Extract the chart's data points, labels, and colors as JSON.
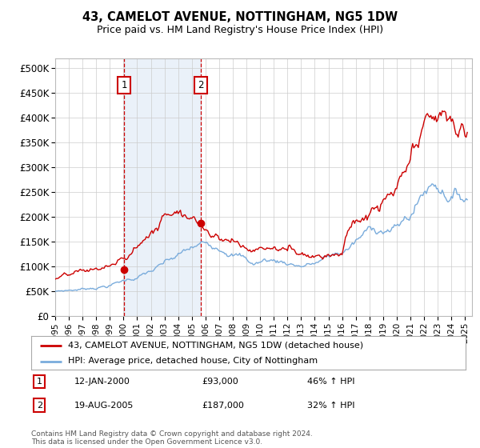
{
  "title": "43, CAMELOT AVENUE, NOTTINGHAM, NG5 1DW",
  "subtitle": "Price paid vs. HM Land Registry's House Price Index (HPI)",
  "legend_line1": "43, CAMELOT AVENUE, NOTTINGHAM, NG5 1DW (detached house)",
  "legend_line2": "HPI: Average price, detached house, City of Nottingham",
  "sale1_label": "1",
  "sale1_date": "12-JAN-2000",
  "sale1_price": "£93,000",
  "sale1_hpi": "46% ↑ HPI",
  "sale2_label": "2",
  "sale2_date": "19-AUG-2005",
  "sale2_price": "£187,000",
  "sale2_hpi": "32% ↑ HPI",
  "footnote": "Contains HM Land Registry data © Crown copyright and database right 2024.\nThis data is licensed under the Open Government Licence v3.0.",
  "red_color": "#cc0000",
  "blue_color": "#7aacdc",
  "vline_color": "#cc0000",
  "bg_color": "#ffffff",
  "grid_color": "#cccccc",
  "panel_color": "#dce8f5",
  "ylim_min": 0,
  "ylim_max": 520000,
  "yticks": [
    0,
    50000,
    100000,
    150000,
    200000,
    250000,
    300000,
    350000,
    400000,
    450000,
    500000
  ],
  "sale1_x": 2000.04,
  "sale2_x": 2005.64,
  "sale1_y": 93000,
  "sale2_y": 187000,
  "xmin": 1995,
  "xmax": 2025.5
}
